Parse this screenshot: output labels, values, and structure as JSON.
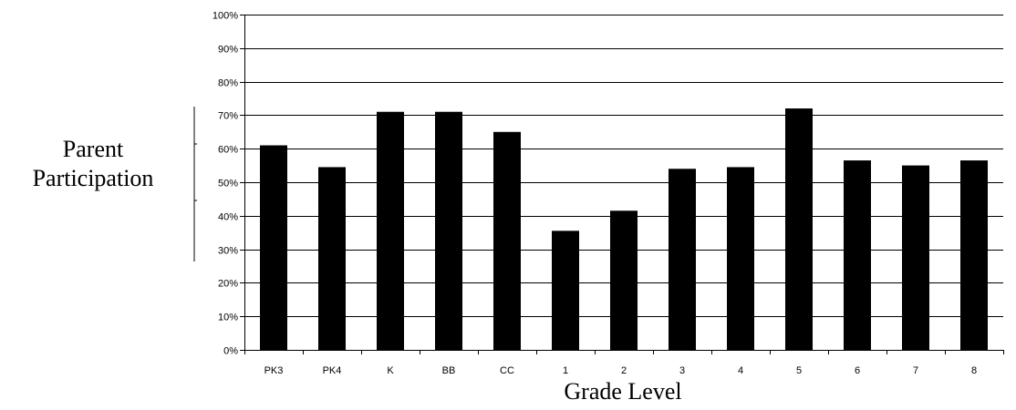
{
  "chart_data": {
    "type": "bar",
    "xlabel": "Grade Level",
    "ylabel_lines": [
      "Parent",
      "Participation"
    ],
    "categories": [
      "PK3",
      "PK4",
      "K",
      "BB",
      "CC",
      "1",
      "2",
      "3",
      "4",
      "5",
      "6",
      "7",
      "8"
    ],
    "values": [
      61,
      54.5,
      71,
      71,
      65,
      35.5,
      41.5,
      54,
      54.5,
      72,
      56.5,
      55,
      56.5
    ],
    "ylim": [
      0,
      100
    ],
    "yticks": [
      0,
      10,
      20,
      30,
      40,
      50,
      60,
      70,
      80,
      90,
      100
    ],
    "ytick_labels": [
      "0%",
      "10%",
      "20%",
      "30%",
      "40%",
      "50%",
      "60%",
      "70%",
      "80%",
      "90%",
      "100%"
    ],
    "grid": true,
    "bar_color": "#000000"
  }
}
